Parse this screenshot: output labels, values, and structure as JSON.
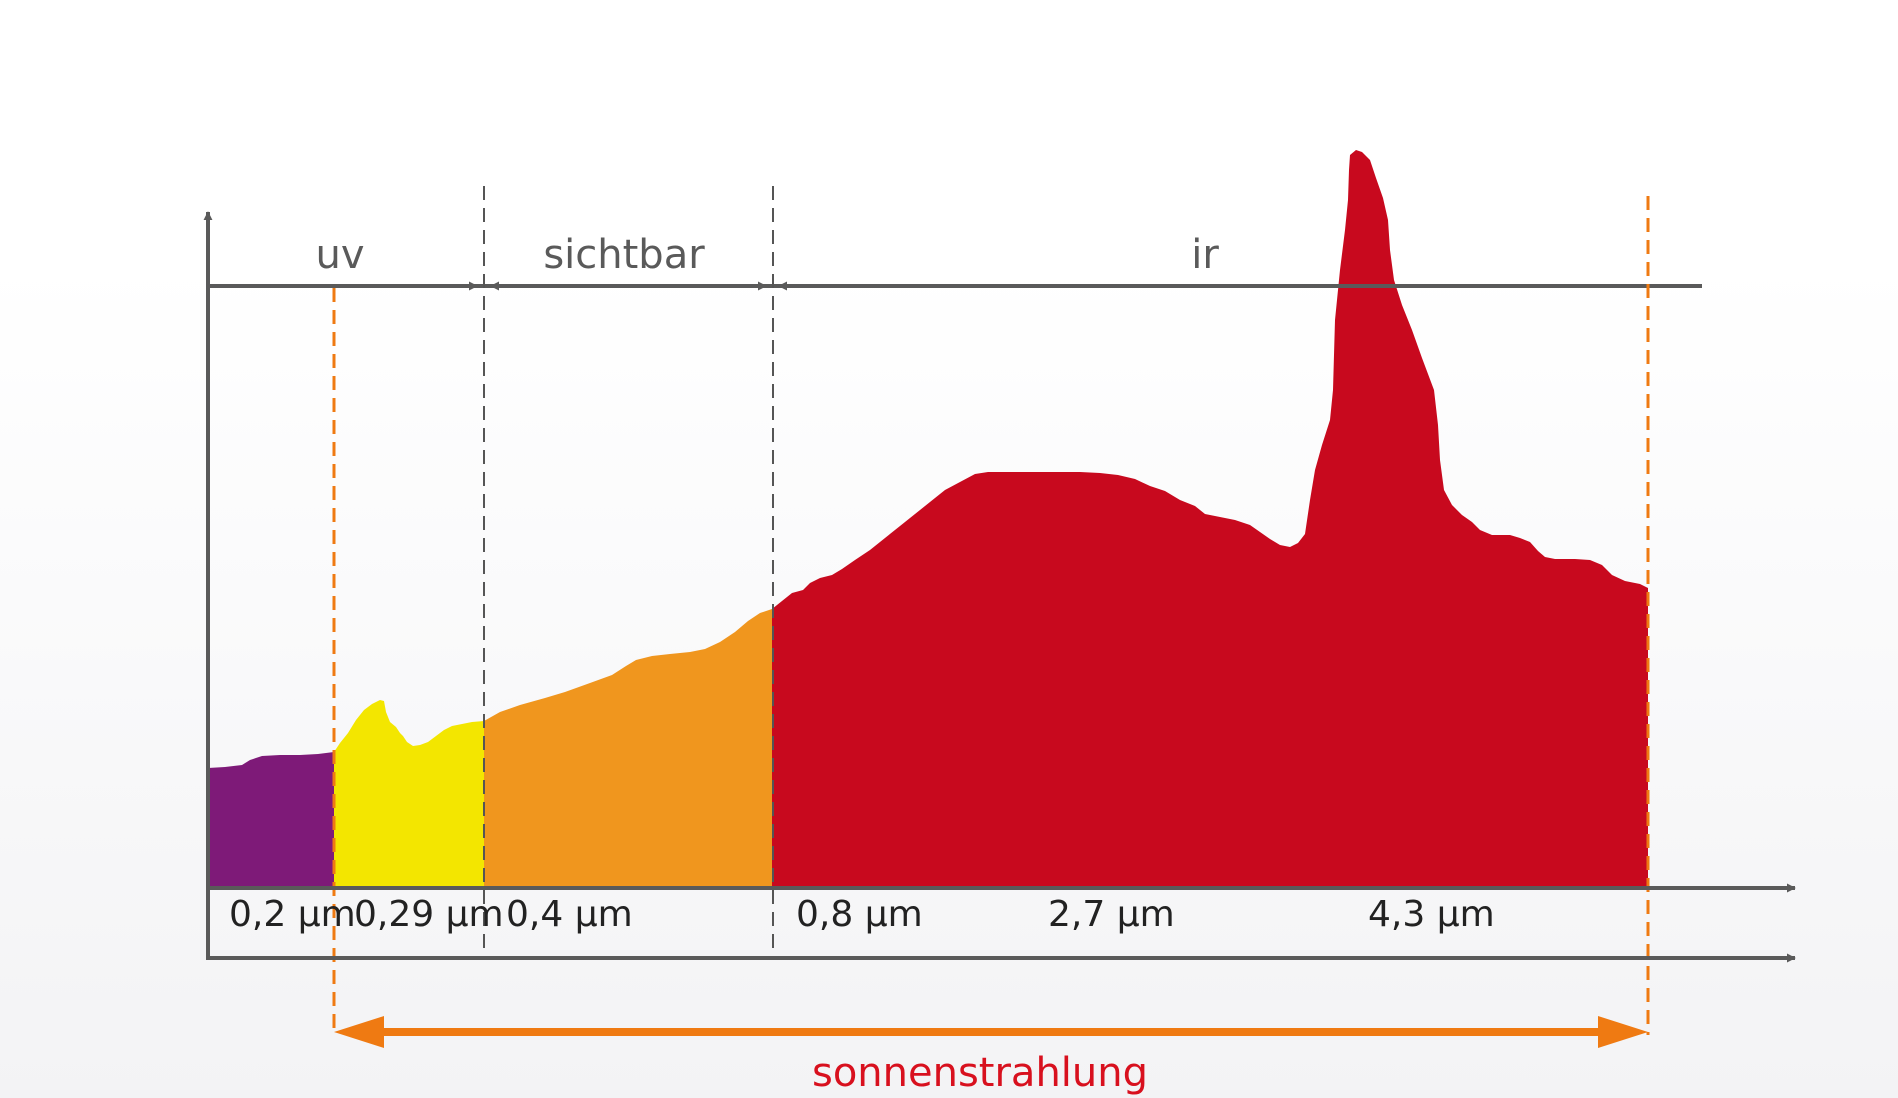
{
  "regions": {
    "uv": "uv",
    "visible": "sichtbar",
    "ir": "ir"
  },
  "ticks": [
    "0,2 µm",
    "0,29 µm",
    "0,4 µm",
    "0,8 µm",
    "2,7 µm",
    "4,3 µm"
  ],
  "caption": "sonnenstrahlung",
  "colors": {
    "axis": "#5a5a5a",
    "uv_deep": "#7e1a78",
    "uv_near": "#f3e600",
    "visible": "#f0961e",
    "infrared": "#c8091e",
    "range_arrow": "#ef7a12",
    "caption": "#d8101e"
  }
}
